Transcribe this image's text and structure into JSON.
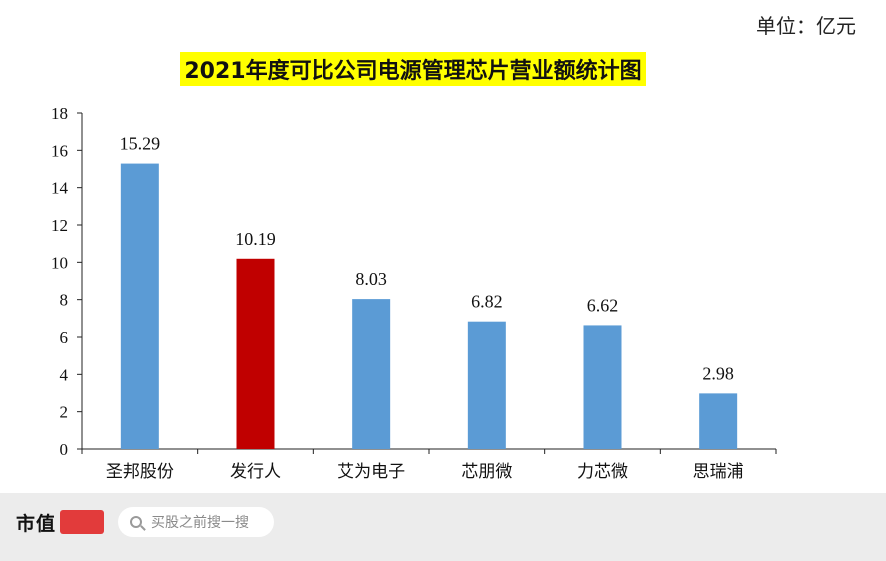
{
  "unit_label": "单位：亿元",
  "footer": {
    "brand": "市值",
    "search_placeholder": "买股之前搜一搜"
  },
  "colors": {
    "bar": "#5b9bd5",
    "highlight": "#c00000",
    "title_background": "#ffff00"
  },
  "chart_data": {
    "type": "bar",
    "title": "2021年度可比公司电源管理芯片营业额统计图",
    "categories": [
      "圣邦股份",
      "发行人",
      "艾为电子",
      "芯朋微",
      "力芯微",
      "思瑞浦"
    ],
    "values": [
      15.29,
      10.19,
      8.03,
      6.82,
      6.62,
      2.98
    ],
    "value_labels": [
      "15.29",
      "10.19",
      "8.03",
      "6.82",
      "6.62",
      "2.98"
    ],
    "highlight_category": "发行人",
    "ylim": [
      0,
      18
    ],
    "yticks": [
      0,
      2,
      4,
      6,
      8,
      10,
      12,
      14,
      16,
      18
    ],
    "xlabel": "",
    "ylabel": "",
    "grid": false,
    "legend": "none"
  }
}
